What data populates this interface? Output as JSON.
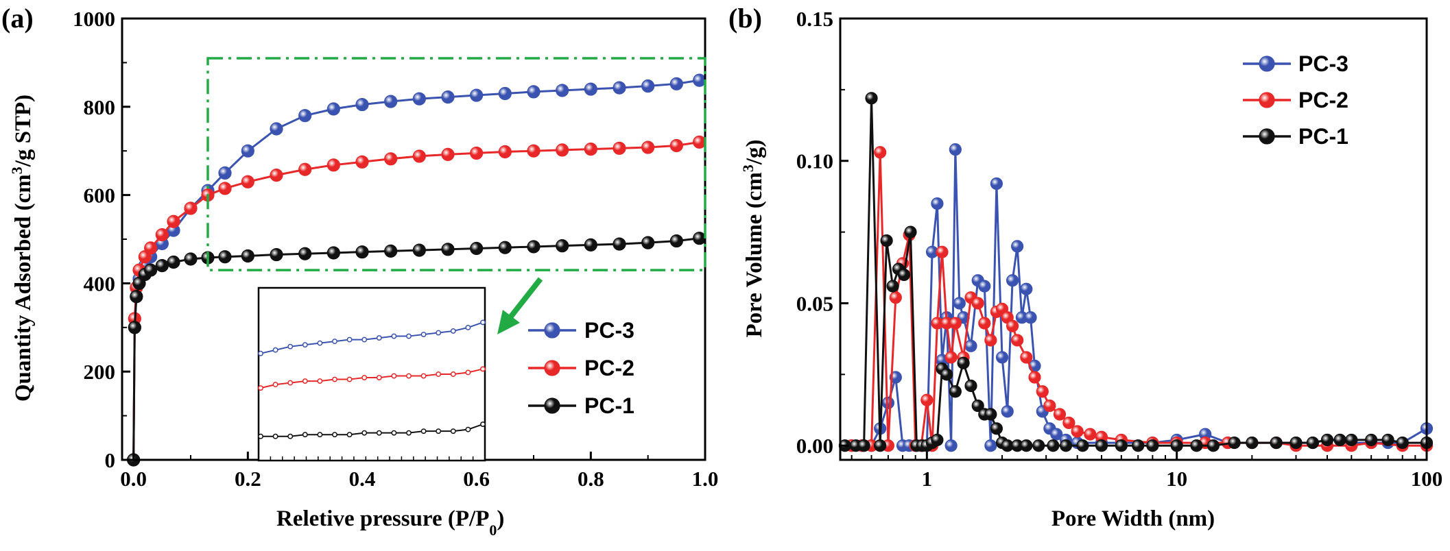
{
  "chart_data": [
    {
      "panel_label": "(a)",
      "type": "line",
      "xlabel": "Reletive pressure (P/P",
      "xlabel_sub": "0",
      "xlabel_close": ")",
      "ylabel": "Quantity Adsorbed (cm",
      "ylabel_sup": "3",
      "ylabel_tail": "/g STP)",
      "xlim": [
        -0.02,
        1.0
      ],
      "ylim": [
        0,
        1000
      ],
      "x_ticks": [
        0.0,
        0.2,
        0.4,
        0.6,
        0.8,
        1.0
      ],
      "x_tick_labels": [
        "0.0",
        "0.2",
        "0.4",
        "0.6",
        "0.8",
        "1.0"
      ],
      "y_ticks": [
        0,
        200,
        400,
        600,
        800,
        1000
      ],
      "y_tick_labels": [
        "0",
        "200",
        "400",
        "600",
        "800",
        "1000"
      ],
      "highlight_box": {
        "x0": 0.13,
        "x1": 1.0,
        "y0": 430,
        "y1": 910,
        "color": "#22aa44"
      },
      "legend_position": "right-middle",
      "series": [
        {
          "name": "PC-3",
          "color": "#3a53b0",
          "x": [
            0.0,
            0.002,
            0.005,
            0.01,
            0.02,
            0.03,
            0.05,
            0.07,
            0.1,
            0.13,
            0.16,
            0.2,
            0.25,
            0.3,
            0.35,
            0.4,
            0.45,
            0.5,
            0.55,
            0.6,
            0.65,
            0.7,
            0.75,
            0.8,
            0.85,
            0.9,
            0.95,
            0.99
          ],
          "y": [
            0,
            300,
            370,
            410,
            440,
            460,
            490,
            520,
            570,
            610,
            650,
            700,
            750,
            780,
            795,
            805,
            812,
            818,
            822,
            826,
            830,
            834,
            837,
            840,
            843,
            847,
            852,
            860
          ]
        },
        {
          "name": "PC-2",
          "color": "#e82828",
          "x": [
            0.0,
            0.002,
            0.005,
            0.01,
            0.02,
            0.03,
            0.05,
            0.07,
            0.1,
            0.13,
            0.16,
            0.2,
            0.25,
            0.3,
            0.35,
            0.4,
            0.45,
            0.5,
            0.55,
            0.6,
            0.65,
            0.7,
            0.75,
            0.8,
            0.85,
            0.9,
            0.95,
            0.99
          ],
          "y": [
            0,
            320,
            390,
            430,
            460,
            480,
            510,
            540,
            570,
            600,
            615,
            630,
            645,
            658,
            668,
            675,
            682,
            688,
            692,
            695,
            698,
            700,
            702,
            704,
            706,
            708,
            712,
            720
          ]
        },
        {
          "name": "PC-1",
          "color": "#111111",
          "x": [
            0.0,
            0.002,
            0.005,
            0.01,
            0.02,
            0.03,
            0.05,
            0.07,
            0.1,
            0.13,
            0.16,
            0.2,
            0.25,
            0.3,
            0.35,
            0.4,
            0.45,
            0.5,
            0.55,
            0.6,
            0.65,
            0.7,
            0.75,
            0.8,
            0.85,
            0.9,
            0.95,
            0.99
          ],
          "y": [
            0,
            300,
            370,
            400,
            420,
            430,
            440,
            448,
            455,
            458,
            460,
            462,
            465,
            467,
            469,
            471,
            473,
            475,
            477,
            479,
            481,
            483,
            485,
            487,
            489,
            492,
            496,
            502
          ]
        }
      ],
      "inset": {
        "description_free": true,
        "series": [
          {
            "name": "PC-3",
            "color": "#3a53b0",
            "y": [
              0.62,
              0.64,
              0.66,
              0.67,
              0.68,
              0.69,
              0.7,
              0.7,
              0.71,
              0.72,
              0.72,
              0.73,
              0.74,
              0.75,
              0.77,
              0.8
            ]
          },
          {
            "name": "PC-2",
            "color": "#e82828",
            "y": [
              0.42,
              0.44,
              0.45,
              0.46,
              0.46,
              0.47,
              0.47,
              0.48,
              0.48,
              0.49,
              0.49,
              0.49,
              0.5,
              0.5,
              0.51,
              0.53
            ]
          },
          {
            "name": "PC-1",
            "color": "#111111",
            "y": [
              0.14,
              0.14,
              0.14,
              0.15,
              0.15,
              0.15,
              0.15,
              0.16,
              0.16,
              0.16,
              0.16,
              0.17,
              0.17,
              0.17,
              0.18,
              0.21
            ]
          }
        ]
      }
    },
    {
      "panel_label": "(b)",
      "type": "line",
      "x_scale": "log",
      "xlabel": "Pore Width (nm)",
      "ylabel": "Pore Volume (cm",
      "ylabel_sup": "3",
      "ylabel_tail": "/g)",
      "xlim": [
        0.45,
        100
      ],
      "ylim": [
        -0.005,
        0.15
      ],
      "x_ticks": [
        1,
        10,
        100
      ],
      "x_tick_labels": [
        "1",
        "10",
        "100"
      ],
      "y_ticks": [
        0.0,
        0.05,
        0.1,
        0.15
      ],
      "y_tick_labels": [
        "0.00",
        "0.05",
        "0.10",
        "0.15"
      ],
      "legend_position": "top-right",
      "series": [
        {
          "name": "PC-3",
          "color": "#3a53b0",
          "x": [
            0.5,
            0.55,
            0.6,
            0.65,
            0.7,
            0.75,
            0.8,
            0.85,
            0.9,
            0.95,
            1.0,
            1.05,
            1.1,
            1.15,
            1.2,
            1.25,
            1.3,
            1.35,
            1.4,
            1.5,
            1.6,
            1.7,
            1.8,
            1.9,
            2.0,
            2.1,
            2.2,
            2.3,
            2.4,
            2.5,
            2.6,
            2.7,
            2.9,
            3.1,
            3.3,
            3.6,
            4.0,
            5.0,
            6.0,
            8.0,
            10,
            13,
            16,
            20,
            25,
            30,
            35,
            40,
            45,
            50,
            60,
            70,
            80,
            100
          ],
          "y": [
            0,
            0,
            0,
            0.006,
            0.015,
            0.024,
            0,
            0,
            0,
            0,
            0,
            0.068,
            0.085,
            0.03,
            0.045,
            0,
            0.104,
            0.05,
            0.045,
            0.035,
            0.058,
            0.056,
            0,
            0.092,
            0.031,
            0.012,
            0.058,
            0.07,
            0.045,
            0.055,
            0.045,
            0.028,
            0.012,
            0.006,
            0.004,
            0.002,
            0.001,
            0.001,
            0.001,
            0.001,
            0.002,
            0.004,
            0.001,
            0.001,
            0.001,
            0.001,
            0.001,
            0.002,
            0.002,
            0.001,
            0.001,
            0.001,
            0.001,
            0.006
          ]
        },
        {
          "name": "PC-2",
          "color": "#e82828",
          "x": [
            0.5,
            0.55,
            0.6,
            0.65,
            0.7,
            0.75,
            0.8,
            0.85,
            0.9,
            0.95,
            1.0,
            1.05,
            1.1,
            1.15,
            1.2,
            1.25,
            1.3,
            1.4,
            1.5,
            1.6,
            1.7,
            1.8,
            1.9,
            2.0,
            2.1,
            2.2,
            2.3,
            2.5,
            2.7,
            2.9,
            3.1,
            3.4,
            3.7,
            4.0,
            4.5,
            5.0,
            6.0,
            8.0,
            10,
            13,
            16,
            20,
            25,
            30,
            40,
            50,
            60,
            80,
            100
          ],
          "y": [
            0,
            0,
            0,
            0.103,
            0,
            0.052,
            0.064,
            0.074,
            0,
            0,
            0.016,
            0,
            0.043,
            0.068,
            0.043,
            0.031,
            0.043,
            0.031,
            0.052,
            0.05,
            0.043,
            0.037,
            0.047,
            0.048,
            0.045,
            0.042,
            0.037,
            0.031,
            0.024,
            0.019,
            0.014,
            0.011,
            0.008,
            0.005,
            0.004,
            0.003,
            0.002,
            0.001,
            0.001,
            0.001,
            0.001,
            0.001,
            0.001,
            0,
            0,
            0,
            0.001,
            0,
            0
          ]
        },
        {
          "name": "PC-1",
          "color": "#111111",
          "x": [
            0.47,
            0.52,
            0.56,
            0.6,
            0.65,
            0.69,
            0.73,
            0.77,
            0.81,
            0.86,
            0.91,
            0.96,
            1.0,
            1.05,
            1.1,
            1.15,
            1.2,
            1.3,
            1.4,
            1.5,
            1.6,
            1.7,
            1.8,
            1.9,
            2.0,
            2.1,
            2.3,
            2.5,
            2.8,
            3.2,
            3.6,
            4.2,
            5.0,
            6.0,
            7.0,
            8.0,
            10,
            12,
            14,
            17,
            20,
            25,
            30,
            35,
            40,
            45,
            50,
            60,
            70,
            80,
            100
          ],
          "y": [
            0,
            0,
            0,
            0.122,
            0,
            0.072,
            0.056,
            0.062,
            0.06,
            0.075,
            0,
            0,
            0,
            0.001,
            0.002,
            0.027,
            0.025,
            0.019,
            0.029,
            0.021,
            0.014,
            0.011,
            0.011,
            0.006,
            0.001,
            0,
            0,
            0,
            0,
            0,
            0,
            0,
            0,
            0,
            0,
            0,
            0,
            0,
            0,
            0.001,
            0.001,
            0.001,
            0.001,
            0.001,
            0.002,
            0.002,
            0.002,
            0.002,
            0.002,
            0.001,
            0.001
          ]
        }
      ]
    }
  ]
}
